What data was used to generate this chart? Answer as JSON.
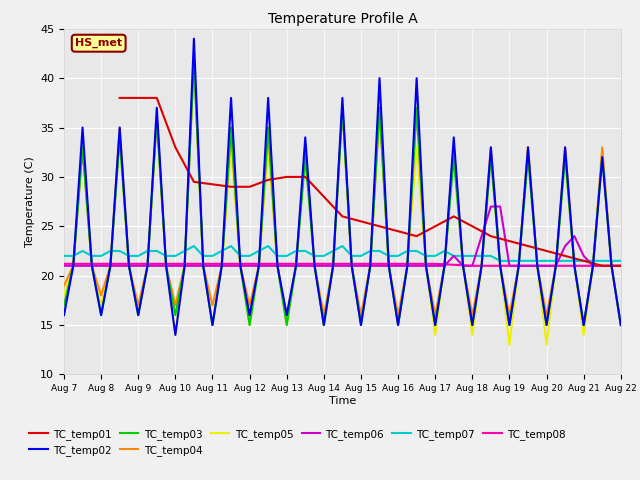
{
  "title": "Temperature Profile A",
  "xlabel": "Time",
  "ylabel": "Temperature (C)",
  "ylim": [
    10,
    45
  ],
  "xlim": [
    0,
    15
  ],
  "background_color": "#f0f0f0",
  "plot_bg_color": "#e8e8e8",
  "annotation_text": "HS_met",
  "annotation_bg": "#ffff99",
  "annotation_border": "#8B0000",
  "annotation_text_color": "#8B0000",
  "x_tick_labels": [
    "Aug 7",
    "Aug 8",
    "Aug 9",
    "Aug 10",
    "Aug 11",
    "Aug 12",
    "Aug 13",
    "Aug 14",
    "Aug 15",
    "Aug 16",
    "Aug 17",
    "Aug 18",
    "Aug 19",
    "Aug 20",
    "Aug 21",
    "Aug 22"
  ],
  "series_order": [
    "TC_temp05",
    "TC_temp04",
    "TC_temp03",
    "TC_temp07",
    "TC_temp08",
    "TC_temp06",
    "TC_temp01",
    "TC_temp02"
  ],
  "series": {
    "TC_temp01": {
      "color": "#dd0000",
      "lw": 1.5,
      "data_x": [
        1.5,
        2.5,
        3.0,
        3.5,
        4.5,
        5.0,
        5.5,
        6.0,
        6.5,
        7.5,
        8.5,
        9.5,
        10.5,
        11.5,
        12.5,
        13.5,
        14.5,
        15.0
      ],
      "data_y": [
        38,
        38,
        33,
        29.5,
        29,
        29,
        29.7,
        30,
        30,
        26,
        25,
        24,
        26,
        24,
        23,
        22,
        21,
        21
      ]
    },
    "TC_temp02": {
      "color": "#0000ee",
      "lw": 1.5,
      "data_x": [
        0.0,
        0.25,
        0.5,
        0.75,
        1.0,
        1.25,
        1.5,
        1.75,
        2.0,
        2.25,
        2.5,
        2.75,
        3.0,
        3.25,
        3.5,
        3.75,
        4.0,
        4.25,
        4.5,
        4.75,
        5.0,
        5.25,
        5.5,
        5.75,
        6.0,
        6.25,
        6.5,
        6.75,
        7.0,
        7.25,
        7.5,
        7.75,
        8.0,
        8.25,
        8.5,
        8.75,
        9.0,
        9.25,
        9.5,
        9.75,
        10.0,
        10.25,
        10.5,
        10.75,
        11.0,
        11.25,
        11.5,
        11.75,
        12.0,
        12.25,
        12.5,
        12.75,
        13.0,
        13.25,
        13.5,
        13.75,
        14.0,
        14.25,
        14.5,
        14.75,
        15.0
      ],
      "data_y": [
        16,
        21,
        35,
        21,
        16,
        21,
        35,
        21,
        16,
        21,
        37,
        21,
        14,
        21,
        44,
        21,
        15,
        21,
        38,
        21,
        16,
        21,
        38,
        21,
        16,
        21,
        34,
        21,
        15,
        21,
        38,
        21,
        15,
        21,
        40,
        21,
        15,
        21,
        40,
        21,
        15,
        21,
        34,
        21,
        15,
        21,
        33,
        21,
        15,
        21,
        33,
        21,
        15,
        21,
        33,
        21,
        15,
        21,
        32,
        21,
        15
      ]
    },
    "TC_temp03": {
      "color": "#00cc00",
      "lw": 1.5,
      "data_x": [
        0.0,
        0.25,
        0.5,
        0.75,
        1.0,
        1.25,
        1.5,
        1.75,
        2.0,
        2.25,
        2.5,
        2.75,
        3.0,
        3.25,
        3.5,
        3.75,
        4.0,
        4.25,
        4.5,
        4.75,
        5.0,
        5.25,
        5.5,
        5.75,
        6.0,
        6.25,
        6.5,
        6.75,
        7.0,
        7.25,
        7.5,
        7.75,
        8.0,
        8.25,
        8.5,
        8.75,
        9.0,
        9.25,
        9.5,
        9.75,
        10.0,
        10.25,
        10.5,
        10.75,
        11.0,
        11.25,
        11.5,
        11.75,
        12.0,
        12.25,
        12.5,
        12.75,
        13.0,
        13.25,
        13.5,
        13.75,
        14.0,
        14.25,
        14.5,
        14.75,
        15.0
      ],
      "data_y": [
        17,
        21,
        33,
        21,
        16,
        21,
        34,
        21,
        16,
        21,
        36,
        21,
        16,
        21,
        42,
        21,
        15,
        21,
        35,
        21,
        15,
        21,
        35,
        21,
        15,
        21,
        32,
        21,
        15,
        21,
        37,
        21,
        15,
        21,
        37,
        21,
        15,
        21,
        37,
        21,
        15,
        21,
        32,
        21,
        15,
        21,
        32,
        21,
        15,
        21,
        32,
        21,
        15,
        21,
        32,
        21,
        15,
        21,
        32,
        21,
        15
      ]
    },
    "TC_temp04": {
      "color": "#ff8800",
      "lw": 1.5,
      "data_x": [
        0.0,
        0.25,
        0.5,
        0.75,
        1.0,
        1.25,
        1.5,
        1.75,
        2.0,
        2.25,
        2.5,
        2.75,
        3.0,
        3.25,
        3.5,
        3.75,
        4.0,
        4.25,
        4.5,
        4.75,
        5.0,
        5.25,
        5.5,
        5.75,
        6.0,
        6.25,
        6.5,
        6.75,
        7.0,
        7.25,
        7.5,
        7.75,
        8.0,
        8.25,
        8.5,
        8.75,
        9.0,
        9.25,
        9.5,
        9.75,
        10.0,
        10.25,
        10.5,
        10.75,
        11.0,
        11.25,
        11.5,
        11.75,
        12.0,
        12.25,
        12.5,
        12.75,
        13.0,
        13.25,
        13.5,
        13.75,
        14.0,
        14.25,
        14.5,
        14.75,
        15.0
      ],
      "data_y": [
        19,
        21,
        33,
        21,
        18,
        21,
        35,
        21,
        17,
        21,
        36,
        21,
        17,
        21,
        42,
        21,
        17,
        21,
        35,
        21,
        17,
        21,
        35,
        21,
        16,
        21,
        33,
        21,
        16,
        21,
        37,
        21,
        16,
        21,
        37,
        21,
        16,
        21,
        37,
        21,
        16,
        21,
        33,
        21,
        16,
        21,
        33,
        21,
        16,
        21,
        33,
        21,
        16,
        21,
        33,
        21,
        15,
        21,
        33,
        21,
        15
      ]
    },
    "TC_temp05": {
      "color": "#eeee00",
      "lw": 1.5,
      "data_x": [
        0.0,
        0.25,
        0.5,
        0.75,
        1.0,
        1.25,
        1.5,
        1.75,
        2.0,
        2.25,
        2.5,
        2.75,
        3.0,
        3.25,
        3.5,
        3.75,
        4.0,
        4.25,
        4.5,
        4.75,
        5.0,
        5.25,
        5.5,
        5.75,
        6.0,
        6.25,
        6.5,
        6.75,
        7.0,
        7.25,
        7.5,
        7.75,
        8.0,
        8.25,
        8.5,
        8.75,
        9.0,
        9.25,
        9.5,
        9.75,
        10.0,
        10.25,
        10.5,
        10.75,
        11.0,
        11.25,
        11.5,
        11.75,
        12.0,
        12.25,
        12.5,
        12.75,
        13.0,
        13.25,
        13.5,
        13.75,
        14.0,
        14.25,
        14.5,
        14.75,
        15.0
      ],
      "data_y": [
        18,
        21,
        33,
        21,
        17,
        21,
        34,
        21,
        16,
        21,
        36,
        21,
        14,
        21,
        42,
        21,
        15,
        21,
        33,
        21,
        15,
        21,
        33,
        21,
        15,
        21,
        33,
        21,
        15,
        21,
        37,
        21,
        15,
        21,
        37,
        21,
        15,
        21,
        33,
        21,
        14,
        21,
        33,
        21,
        14,
        21,
        32,
        21,
        13,
        21,
        33,
        21,
        13,
        21,
        32,
        21,
        14,
        21,
        32,
        21,
        15
      ]
    },
    "TC_temp06": {
      "color": "#cc00cc",
      "lw": 1.5,
      "data_x": [
        0.0,
        0.25,
        0.5,
        0.75,
        1.0,
        1.25,
        1.5,
        1.75,
        2.0,
        2.25,
        2.5,
        2.75,
        3.0,
        3.25,
        3.5,
        3.75,
        4.0,
        4.25,
        4.5,
        4.75,
        5.0,
        5.25,
        5.5,
        5.75,
        6.0,
        6.25,
        6.5,
        6.75,
        7.0,
        7.25,
        7.5,
        7.75,
        8.0,
        8.25,
        8.5,
        8.75,
        9.0,
        9.25,
        9.5,
        9.75,
        10.0,
        10.25,
        10.5,
        10.75,
        11.0,
        11.25,
        11.5,
        11.75,
        12.0,
        12.25,
        12.5,
        12.75,
        13.0,
        13.25,
        13.5,
        13.75,
        14.0,
        14.25,
        14.5,
        14.75,
        15.0
      ],
      "data_y": [
        21,
        21,
        21,
        21,
        21,
        21,
        21,
        21,
        21,
        21,
        21,
        21,
        21,
        21,
        21,
        21,
        21,
        21,
        21,
        21,
        21,
        21,
        21,
        21,
        21,
        21,
        21,
        21,
        21,
        21,
        21,
        21,
        21,
        21,
        21,
        21,
        21,
        21,
        21,
        21,
        21,
        21,
        22,
        21,
        21,
        24,
        27,
        27,
        21,
        21,
        21,
        21,
        21,
        21,
        23,
        24,
        22,
        21,
        21,
        21,
        21
      ]
    },
    "TC_temp07": {
      "color": "#00cccc",
      "lw": 1.5,
      "data_x": [
        0.0,
        0.25,
        0.5,
        0.75,
        1.0,
        1.25,
        1.5,
        1.75,
        2.0,
        2.25,
        2.5,
        2.75,
        3.0,
        3.25,
        3.5,
        3.75,
        4.0,
        4.25,
        4.5,
        4.75,
        5.0,
        5.25,
        5.5,
        5.75,
        6.0,
        6.25,
        6.5,
        6.75,
        7.0,
        7.25,
        7.5,
        7.75,
        8.0,
        8.25,
        8.5,
        8.75,
        9.0,
        9.25,
        9.5,
        9.75,
        10.0,
        10.25,
        10.5,
        10.75,
        11.0,
        11.25,
        11.5,
        11.75,
        12.0,
        12.25,
        12.5,
        12.75,
        13.0,
        13.25,
        13.5,
        13.75,
        14.0,
        14.25,
        14.5,
        14.75,
        15.0
      ],
      "data_y": [
        22,
        22,
        22.5,
        22,
        22,
        22.5,
        22.5,
        22,
        22,
        22.5,
        22.5,
        22,
        22,
        22.5,
        23,
        22,
        22,
        22.5,
        23,
        22,
        22,
        22.5,
        23,
        22,
        22,
        22.5,
        22.5,
        22,
        22,
        22.5,
        23,
        22,
        22,
        22.5,
        22.5,
        22,
        22,
        22.5,
        22.5,
        22,
        22,
        22.5,
        22,
        22,
        22,
        22,
        22,
        21.5,
        21.5,
        21.5,
        21.5,
        21.5,
        21.5,
        21.5,
        21.5,
        21.5,
        21.5,
        21.5,
        21.5,
        21.5,
        21.5
      ]
    },
    "TC_temp08": {
      "color": "#ff00aa",
      "lw": 1.5,
      "data_x": [
        0,
        1,
        2,
        3,
        4,
        5,
        6,
        7,
        8,
        9,
        10,
        11,
        12,
        13,
        14,
        15
      ],
      "data_y": [
        21.2,
        21.2,
        21.2,
        21.2,
        21.2,
        21.2,
        21.2,
        21.2,
        21.2,
        21.2,
        21.2,
        21,
        21,
        21,
        21,
        21
      ]
    }
  },
  "legend_entries": [
    {
      "label": "TC_temp01",
      "color": "#dd0000"
    },
    {
      "label": "TC_temp02",
      "color": "#0000ee"
    },
    {
      "label": "TC_temp03",
      "color": "#00cc00"
    },
    {
      "label": "TC_temp04",
      "color": "#ff8800"
    },
    {
      "label": "TC_temp05",
      "color": "#eeee00"
    },
    {
      "label": "TC_temp06",
      "color": "#cc00cc"
    },
    {
      "label": "TC_temp07",
      "color": "#00cccc"
    },
    {
      "label": "TC_temp08",
      "color": "#ff00aa"
    }
  ]
}
